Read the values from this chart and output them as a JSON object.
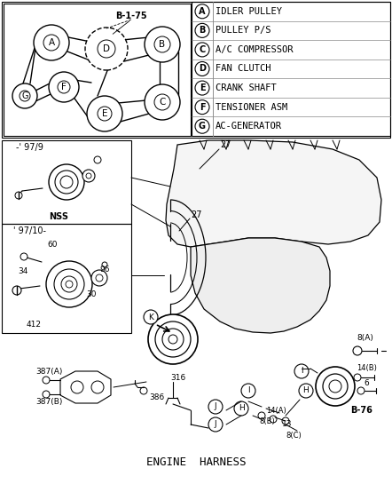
{
  "bg_color": "#ffffff",
  "legend_items": [
    [
      "A",
      "IDLER PULLEY"
    ],
    [
      "B",
      "PULLEY P/S"
    ],
    [
      "C",
      "A/C COMPRESSOR"
    ],
    [
      "D",
      "FAN CLUTCH"
    ],
    [
      "E",
      "CRANK SHAFT"
    ],
    [
      "F",
      "TENSIONER ASM"
    ],
    [
      "G",
      "AC-GENERATOR"
    ]
  ],
  "fig_w": 4.42,
  "fig_h": 5.54,
  "dpi": 100
}
